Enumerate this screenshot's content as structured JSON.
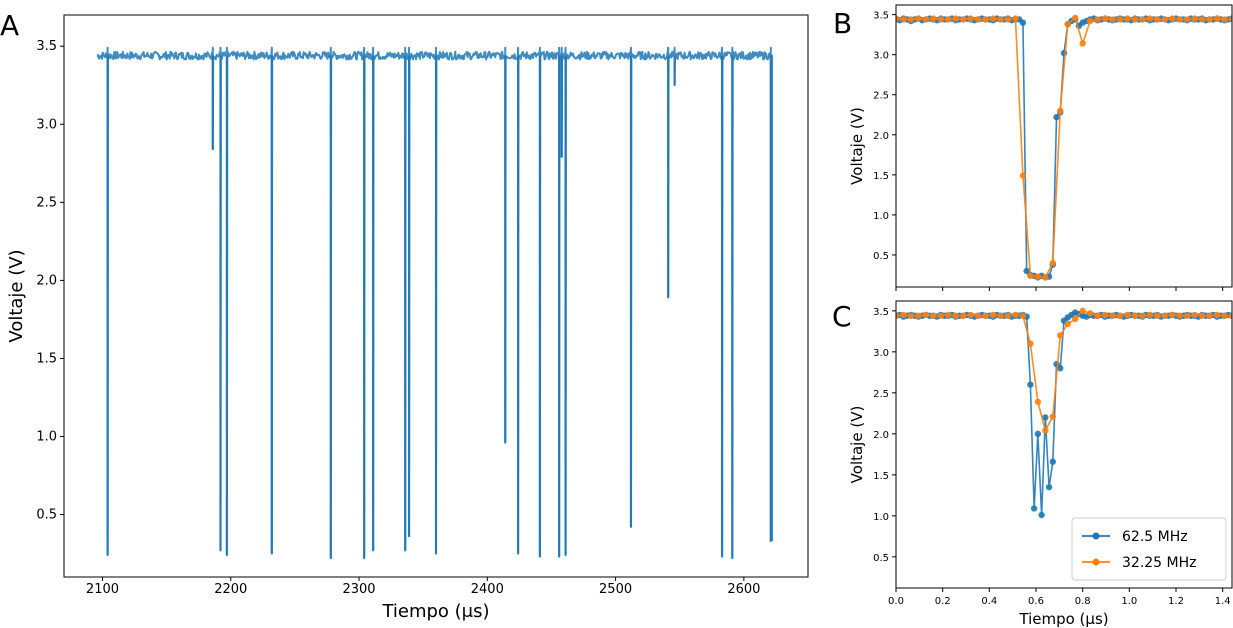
{
  "colors": {
    "series_blue": "#1f77b4",
    "series_orange": "#ff7f0e"
  },
  "chart_data": [
    {
      "type": "line",
      "panel": "A",
      "xlabel": "Tiempo (μs)",
      "ylabel": "Voltaje (V)",
      "xlim": [
        2070,
        2650
      ],
      "ylim": [
        0.1,
        3.7
      ],
      "xticks": [
        2100,
        2200,
        2300,
        2400,
        2500,
        2600
      ],
      "yticks": [
        0.5,
        1.0,
        1.5,
        2.0,
        2.5,
        3.0,
        3.5
      ],
      "grid": false,
      "baseline": 3.44,
      "x_range": [
        2096,
        2622
      ],
      "dips": [
        {
          "x": 2104,
          "min": 0.24
        },
        {
          "x": 2186,
          "min": 2.84
        },
        {
          "x": 2192,
          "min": 0.27
        },
        {
          "x": 2197,
          "min": 0.24
        },
        {
          "x": 2232,
          "min": 0.25
        },
        {
          "x": 2278,
          "min": 0.22
        },
        {
          "x": 2304,
          "min": 0.22
        },
        {
          "x": 2311,
          "min": 0.27
        },
        {
          "x": 2336,
          "min": 0.27
        },
        {
          "x": 2339,
          "min": 0.36
        },
        {
          "x": 2360,
          "min": 0.25
        },
        {
          "x": 2414,
          "min": 0.96
        },
        {
          "x": 2424,
          "min": 0.25
        },
        {
          "x": 2441,
          "min": 0.23
        },
        {
          "x": 2456,
          "min": 0.23
        },
        {
          "x": 2458,
          "min": 2.79
        },
        {
          "x": 2461,
          "min": 0.24
        },
        {
          "x": 2512,
          "min": 0.42
        },
        {
          "x": 2541,
          "min": 1.89
        },
        {
          "x": 2546,
          "min": 3.25
        },
        {
          "x": 2583,
          "min": 0.23
        },
        {
          "x": 2591,
          "min": 0.22
        },
        {
          "x": 2621,
          "min": 0.33
        }
      ],
      "series": [
        {
          "values_note": "",
          "baseline_color": "#1f77b4"
        }
      ]
    },
    {
      "type": "line",
      "panel": "B",
      "xlabel": "",
      "ylabel": "Voltaje (V)",
      "xlim": [
        0.0,
        1.44
      ],
      "ylim": [
        0.1,
        3.62
      ],
      "xticks": [
        0.0,
        0.2,
        0.4,
        0.6,
        0.8,
        1.0,
        1.2,
        1.4
      ],
      "yticks": [
        0.5,
        1.0,
        1.5,
        2.0,
        2.5,
        3.0,
        3.5
      ],
      "series": [
        {
          "name": "62.5 MHz",
          "color": "#1f77b4",
          "x": [
            0.0,
            0.016,
            0.032,
            0.048,
            0.064,
            0.08,
            0.096,
            0.112,
            0.128,
            0.144,
            0.16,
            0.176,
            0.192,
            0.208,
            0.224,
            0.24,
            0.256,
            0.272,
            0.288,
            0.304,
            0.32,
            0.336,
            0.352,
            0.368,
            0.384,
            0.4,
            0.416,
            0.432,
            0.448,
            0.464,
            0.48,
            0.496,
            0.512,
            0.528,
            0.544,
            0.56,
            0.576,
            0.592,
            0.608,
            0.624,
            0.64,
            0.656,
            0.672,
            0.688,
            0.704,
            0.72,
            0.736,
            0.752,
            0.768,
            0.784,
            0.8,
            0.816,
            0.832,
            0.848,
            0.864,
            0.88,
            0.896,
            0.912,
            0.928,
            0.944,
            0.96,
            0.976,
            0.992,
            1.008,
            1.024,
            1.04,
            1.056,
            1.072,
            1.088,
            1.104,
            1.12,
            1.136,
            1.152,
            1.168,
            1.184,
            1.2,
            1.216,
            1.232,
            1.248,
            1.264,
            1.28,
            1.296,
            1.312,
            1.328,
            1.344,
            1.36,
            1.376,
            1.392,
            1.408,
            1.424,
            1.44
          ],
          "y": [
            3.44,
            3.43,
            3.45,
            3.44,
            3.42,
            3.44,
            3.45,
            3.43,
            3.44,
            3.45,
            3.44,
            3.43,
            3.45,
            3.44,
            3.44,
            3.45,
            3.43,
            3.44,
            3.44,
            3.45,
            3.44,
            3.43,
            3.44,
            3.45,
            3.44,
            3.44,
            3.43,
            3.45,
            3.44,
            3.44,
            3.45,
            3.43,
            3.44,
            3.44,
            3.4,
            0.3,
            0.25,
            0.24,
            0.22,
            0.24,
            0.22,
            0.23,
            0.38,
            2.22,
            2.28,
            3.02,
            3.38,
            3.42,
            3.44,
            3.36,
            3.4,
            3.42,
            3.44,
            3.45,
            3.43,
            3.44,
            3.45,
            3.44,
            3.43,
            3.44,
            3.45,
            3.44,
            3.44,
            3.43,
            3.45,
            3.44,
            3.44,
            3.45,
            3.43,
            3.44,
            3.44,
            3.45,
            3.44,
            3.43,
            3.44,
            3.45,
            3.44,
            3.44,
            3.43,
            3.45,
            3.44,
            3.44,
            3.45,
            3.43,
            3.44,
            3.44,
            3.45,
            3.44,
            3.43,
            3.44,
            3.45
          ]
        },
        {
          "name": "32.25 MHz",
          "color": "#ff7f0e",
          "x": [
            0.0,
            0.032,
            0.064,
            0.096,
            0.128,
            0.16,
            0.192,
            0.224,
            0.256,
            0.288,
            0.32,
            0.352,
            0.384,
            0.416,
            0.448,
            0.48,
            0.512,
            0.544,
            0.576,
            0.608,
            0.64,
            0.672,
            0.704,
            0.736,
            0.768,
            0.8,
            0.832,
            0.864,
            0.896,
            0.928,
            0.96,
            0.992,
            1.024,
            1.056,
            1.088,
            1.12,
            1.152,
            1.184,
            1.216,
            1.248,
            1.28,
            1.312,
            1.344,
            1.376,
            1.408,
            1.44
          ],
          "y": [
            3.45,
            3.44,
            3.44,
            3.45,
            3.44,
            3.45,
            3.44,
            3.44,
            3.45,
            3.44,
            3.45,
            3.44,
            3.44,
            3.45,
            3.44,
            3.44,
            3.45,
            1.49,
            0.24,
            0.23,
            0.22,
            0.4,
            2.3,
            3.38,
            3.46,
            3.14,
            3.42,
            3.44,
            3.45,
            3.44,
            3.44,
            3.45,
            3.44,
            3.44,
            3.45,
            3.44,
            3.44,
            3.45,
            3.44,
            3.44,
            3.45,
            3.44,
            3.44,
            3.45,
            3.44,
            3.44
          ]
        }
      ]
    },
    {
      "type": "line",
      "panel": "C",
      "xlabel": "Tiempo (μs)",
      "ylabel": "Voltaje (V)",
      "xlim": [
        0.0,
        1.44
      ],
      "ylim": [
        0.12,
        3.62
      ],
      "xticks": [
        0.0,
        0.2,
        0.4,
        0.6,
        0.8,
        1.0,
        1.2,
        1.4
      ],
      "xtick_labels": [
        "0.0",
        "0.2",
        "0.4",
        "0.6",
        "0.8",
        "1.0",
        "1.2",
        "1.4"
      ],
      "yticks": [
        0.5,
        1.0,
        1.5,
        2.0,
        2.5,
        3.0,
        3.5
      ],
      "legend": "bottom-right",
      "series": [
        {
          "name": "62.5 MHz",
          "color": "#1f77b4",
          "x": [
            0.0,
            0.016,
            0.032,
            0.048,
            0.064,
            0.08,
            0.096,
            0.112,
            0.128,
            0.144,
            0.16,
            0.176,
            0.192,
            0.208,
            0.224,
            0.24,
            0.256,
            0.272,
            0.288,
            0.304,
            0.32,
            0.336,
            0.352,
            0.368,
            0.384,
            0.4,
            0.416,
            0.432,
            0.448,
            0.464,
            0.48,
            0.496,
            0.512,
            0.528,
            0.544,
            0.56,
            0.576,
            0.592,
            0.608,
            0.624,
            0.64,
            0.656,
            0.672,
            0.688,
            0.704,
            0.72,
            0.736,
            0.752,
            0.768,
            0.784,
            0.8,
            0.816,
            0.832,
            0.848,
            0.864,
            0.88,
            0.896,
            0.912,
            0.928,
            0.944,
            0.96,
            0.976,
            0.992,
            1.008,
            1.024,
            1.04,
            1.056,
            1.072,
            1.088,
            1.104,
            1.12,
            1.136,
            1.152,
            1.168,
            1.184,
            1.2,
            1.216,
            1.232,
            1.248,
            1.264,
            1.28,
            1.296,
            1.312,
            1.328,
            1.344,
            1.36,
            1.376,
            1.392,
            1.408,
            1.424,
            1.44
          ],
          "y": [
            3.44,
            3.45,
            3.43,
            3.44,
            3.45,
            3.44,
            3.43,
            3.44,
            3.45,
            3.44,
            3.44,
            3.43,
            3.45,
            3.44,
            3.44,
            3.45,
            3.43,
            3.44,
            3.44,
            3.45,
            3.44,
            3.43,
            3.44,
            3.45,
            3.44,
            3.44,
            3.43,
            3.45,
            3.44,
            3.44,
            3.45,
            3.43,
            3.44,
            3.44,
            3.45,
            3.43,
            2.6,
            1.09,
            2.0,
            1.01,
            2.2,
            1.35,
            1.66,
            2.85,
            2.8,
            3.38,
            3.42,
            3.45,
            3.48,
            3.46,
            3.44,
            3.43,
            3.45,
            3.44,
            3.44,
            3.45,
            3.43,
            3.44,
            3.44,
            3.45,
            3.44,
            3.43,
            3.44,
            3.45,
            3.44,
            3.44,
            3.43,
            3.45,
            3.44,
            3.44,
            3.45,
            3.43,
            3.44,
            3.44,
            3.45,
            3.44,
            3.43,
            3.44,
            3.45,
            3.44,
            3.44,
            3.43,
            3.45,
            3.44,
            3.44,
            3.45,
            3.43,
            3.44,
            3.44,
            3.45,
            3.44
          ]
        },
        {
          "name": "32.25 MHz",
          "color": "#ff7f0e",
          "x": [
            0.0,
            0.032,
            0.064,
            0.096,
            0.128,
            0.16,
            0.192,
            0.224,
            0.256,
            0.288,
            0.32,
            0.352,
            0.384,
            0.416,
            0.448,
            0.48,
            0.512,
            0.544,
            0.576,
            0.608,
            0.64,
            0.672,
            0.704,
            0.736,
            0.768,
            0.8,
            0.832,
            0.864,
            0.896,
            0.928,
            0.96,
            0.992,
            1.024,
            1.056,
            1.088,
            1.12,
            1.152,
            1.184,
            1.216,
            1.248,
            1.28,
            1.312,
            1.344,
            1.376,
            1.408,
            1.44
          ],
          "y": [
            3.44,
            3.45,
            3.44,
            3.44,
            3.45,
            3.44,
            3.44,
            3.45,
            3.44,
            3.44,
            3.45,
            3.44,
            3.44,
            3.45,
            3.44,
            3.44,
            3.45,
            3.44,
            3.1,
            2.39,
            2.04,
            2.21,
            3.2,
            3.34,
            3.4,
            3.5,
            3.47,
            3.44,
            3.45,
            3.44,
            3.44,
            3.45,
            3.44,
            3.44,
            3.45,
            3.44,
            3.44,
            3.45,
            3.44,
            3.44,
            3.45,
            3.44,
            3.44,
            3.45,
            3.44,
            3.44
          ]
        }
      ]
    }
  ]
}
